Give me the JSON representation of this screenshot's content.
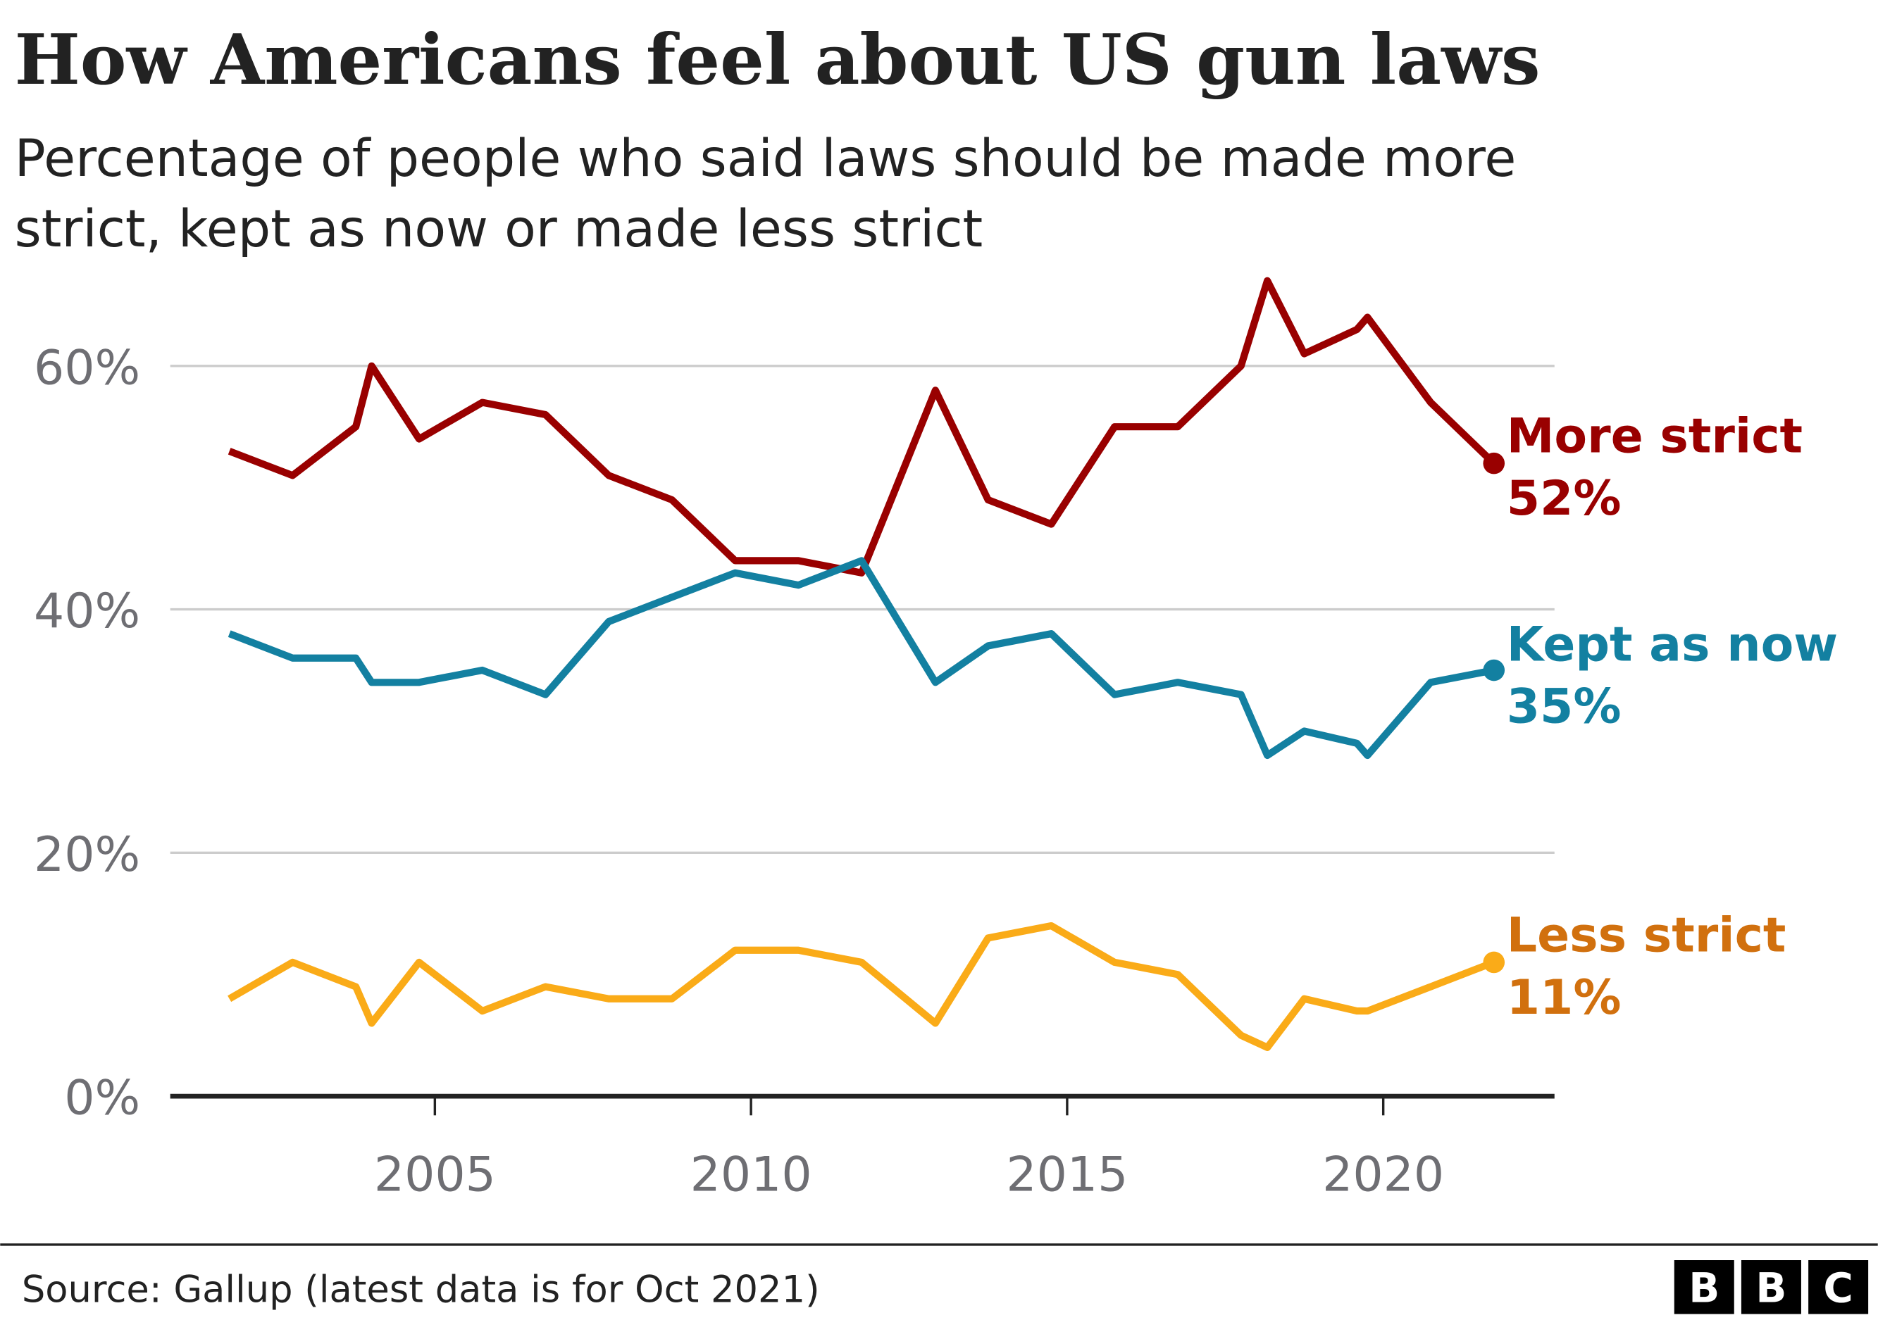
{
  "title": "How Americans feel about US gun laws",
  "subtitle_lines": [
    "Percentage of people who said laws should be made more",
    "strict, kept as now or made less strict"
  ],
  "source": "Source: Gallup (latest data is for Oct 2021)",
  "logo": [
    "B",
    "B",
    "C"
  ],
  "chart_data": {
    "type": "line",
    "title": "How Americans feel about US gun laws",
    "ylim": [
      0,
      67
    ],
    "xlim": [
      2000.4,
      2023.5
    ],
    "y_ticks": [
      0,
      20,
      40,
      60
    ],
    "y_tick_labels": [
      "0%",
      "20%",
      "40%",
      "60%"
    ],
    "x_ticks": [
      2005,
      2010,
      2015,
      2020
    ],
    "x_tick_labels": [
      "2005",
      "2010",
      "2015",
      "2020"
    ],
    "grid": true,
    "legend": "direct labels at line ends (right)",
    "x": [
      "2001-10",
      "2002-10",
      "2003-10",
      "2004-01",
      "2004-10",
      "2005-10",
      "2006-10",
      "2007-10",
      "2008-10",
      "2009-10",
      "2010-10",
      "2011-10",
      "2012-12",
      "2013-10",
      "2014-10",
      "2015-10",
      "2016-10",
      "2017-10",
      "2018-03",
      "2018-10",
      "2019-08",
      "2019-10",
      "2020-10",
      "2021-10"
    ],
    "series": [
      {
        "name": "More strict",
        "end_label": "52%",
        "color": "#990000",
        "label_color": "#990000",
        "values": [
          53,
          51,
          55,
          60,
          54,
          57,
          56,
          51,
          49,
          44,
          44,
          43,
          58,
          49,
          47,
          55,
          55,
          60,
          67,
          61,
          63,
          64,
          57,
          52
        ]
      },
      {
        "name": "Kept as now",
        "end_label": "35%",
        "color": "#1380A1",
        "label_color": "#1380A1",
        "values": [
          38,
          36,
          36,
          34,
          34,
          35,
          33,
          39,
          41,
          43,
          42,
          44,
          34,
          37,
          38,
          33,
          34,
          33,
          28,
          30,
          29,
          28,
          34,
          35
        ]
      },
      {
        "name": "Less strict",
        "end_label": "11%",
        "color": "#FAAB18",
        "label_color": "#D1700E",
        "values": [
          8,
          11,
          9,
          6,
          11,
          7,
          9,
          8,
          8,
          12,
          12,
          11,
          6,
          13,
          14,
          11,
          10,
          5,
          4,
          8,
          7,
          7,
          9,
          11
        ]
      }
    ]
  }
}
